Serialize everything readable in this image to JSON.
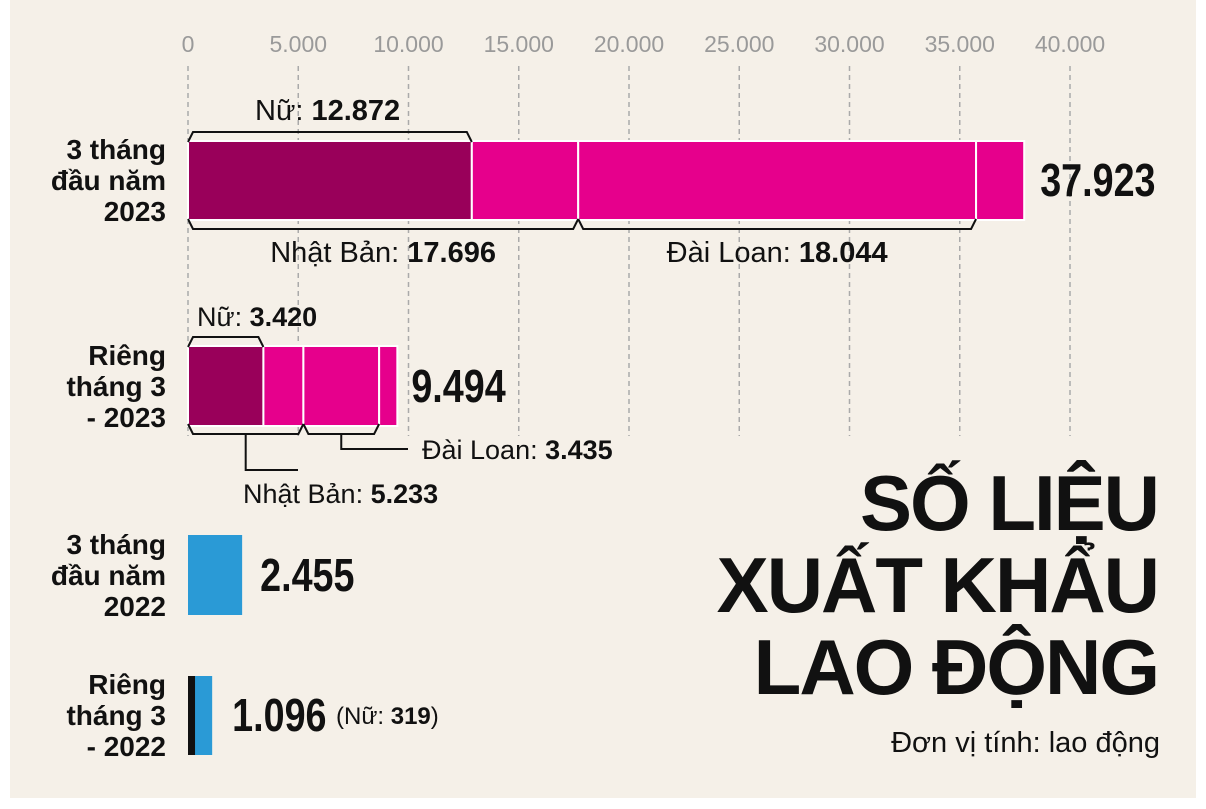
{
  "chart_data": {
    "type": "bar",
    "xlim": [
      0,
      40000
    ],
    "ticks": [
      "0",
      "5.000",
      "10.000",
      "15.000",
      "20.000",
      "25.000",
      "30.000",
      "35.000",
      "40.000"
    ],
    "tick_values": [
      0,
      5000,
      10000,
      15000,
      20000,
      25000,
      30000,
      35000,
      40000
    ],
    "grid": true,
    "rows": [
      {
        "label": [
          "3 tháng",
          "đầu năm",
          "2023"
        ],
        "total": 37923,
        "total_label": "37.923",
        "segments": [
          12872,
          4824,
          18044,
          2183
        ],
        "women_label": "Nữ: ",
        "women_value": "12.872",
        "women": 12872,
        "japan_label": "Nhật Bản: ",
        "japan_value": "17.696",
        "japan": 17696,
        "taiwan_label": "Đài Loan: ",
        "taiwan_value": "18.044",
        "taiwan": 18044
      },
      {
        "label": [
          "Riêng",
          "tháng 3",
          "- 2023"
        ],
        "total": 9494,
        "total_label": "9.494",
        "segments": [
          3420,
          1813,
          3435,
          826
        ],
        "women_label": "Nữ: ",
        "women_value": "3.420",
        "women": 3420,
        "japan_label": "Nhật Bản: ",
        "japan_value": "5.233",
        "japan": 5233,
        "taiwan_label": "Đài Loan: ",
        "taiwan_value": "3.435",
        "taiwan": 3435
      },
      {
        "label": [
          "3 tháng",
          "đầu năm",
          "2022"
        ],
        "total": 2455,
        "total_label": "2.455"
      },
      {
        "label": [
          "Riêng",
          "tháng 3",
          "- 2022"
        ],
        "total": 1096,
        "total_label": "1.096",
        "women": 319,
        "women_note_open": "(Nữ: ",
        "women_value": "319",
        "women_note_close": ")"
      }
    ]
  },
  "title_lines": [
    "SỐ LIỆU",
    "XUẤT KHẨU",
    "LAO ĐỘNG"
  ],
  "unit_note": "Đơn vị tính: lao động",
  "colors": {
    "background": "#f5f0e8",
    "women": "#99005a",
    "men_2023": "#e6008c",
    "bar_2022": "#2a9ad6",
    "grid": "#aaaaaa",
    "tick": "#9a9a9a",
    "text": "#111111"
  }
}
